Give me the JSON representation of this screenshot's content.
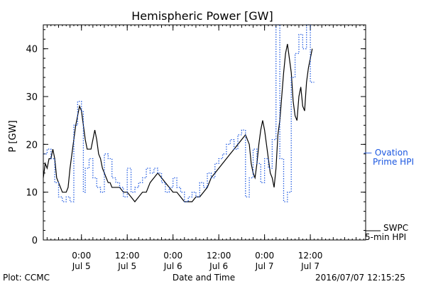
{
  "chart_data": {
    "type": "line",
    "title": "Hemispheric Power [GW]",
    "xlabel": "Date and Time",
    "ylabel": "P [GW]",
    "xlim": [
      -10,
      74.5
    ],
    "ylim": [
      0,
      45
    ],
    "x_units": "hours since 2016-07-05 00:00 UT",
    "y_ticks": [
      "0",
      "10",
      "20",
      "30",
      "40"
    ],
    "x_ticks": [
      {
        "x": 0,
        "time": "0:00",
        "date": "Jul 5"
      },
      {
        "x": 12,
        "time": "12:00",
        "date": "Jul 5"
      },
      {
        "x": 24,
        "time": "0:00",
        "date": "Jul 6"
      },
      {
        "x": 36,
        "time": "12:00",
        "date": "Jul 6"
      },
      {
        "x": 48,
        "time": "0:00",
        "date": "Jul 7"
      },
      {
        "x": 60,
        "time": "12:00",
        "date": "Jul 7"
      }
    ],
    "series": [
      {
        "name": "SWPC 5-min HPI",
        "legend_lines": [
          "SWPC",
          "5-min HPI"
        ],
        "color": "#000000",
        "style": "solid",
        "points": [
          [
            -10,
            13
          ],
          [
            -9.5,
            16
          ],
          [
            -9,
            15
          ],
          [
            -8.5,
            17
          ],
          [
            -8,
            17
          ],
          [
            -7.5,
            19
          ],
          [
            -7,
            17
          ],
          [
            -6.5,
            13
          ],
          [
            -6,
            12
          ],
          [
            -5.5,
            11
          ],
          [
            -5,
            10
          ],
          [
            -4.5,
            10
          ],
          [
            -4,
            10
          ],
          [
            -3.5,
            11
          ],
          [
            -3,
            15
          ],
          [
            -2.5,
            18
          ],
          [
            -2,
            21
          ],
          [
            -1.5,
            24
          ],
          [
            -1,
            26
          ],
          [
            -0.5,
            28
          ],
          [
            0,
            27
          ],
          [
            0.5,
            24
          ],
          [
            1,
            21
          ],
          [
            1.5,
            19
          ],
          [
            2,
            19
          ],
          [
            2.5,
            19
          ],
          [
            3,
            21
          ],
          [
            3.5,
            23
          ],
          [
            4,
            21
          ],
          [
            4.5,
            18
          ],
          [
            5,
            17
          ],
          [
            5.5,
            15
          ],
          [
            6,
            14
          ],
          [
            6.5,
            13
          ],
          [
            7,
            12
          ],
          [
            7.5,
            12
          ],
          [
            8,
            11
          ],
          [
            9,
            11
          ],
          [
            10,
            11
          ],
          [
            11,
            10
          ],
          [
            12,
            10
          ],
          [
            13,
            9
          ],
          [
            14,
            8
          ],
          [
            15,
            9
          ],
          [
            16,
            10
          ],
          [
            17,
            10
          ],
          [
            18,
            12
          ],
          [
            19,
            13
          ],
          [
            20,
            14
          ],
          [
            21,
            13
          ],
          [
            22,
            12
          ],
          [
            23,
            11
          ],
          [
            24,
            10
          ],
          [
            25,
            10
          ],
          [
            26,
            9
          ],
          [
            27,
            8
          ],
          [
            28,
            8
          ],
          [
            29,
            8
          ],
          [
            30,
            9
          ],
          [
            31,
            9
          ],
          [
            32,
            10
          ],
          [
            33,
            11
          ],
          [
            34,
            13
          ],
          [
            35,
            14
          ],
          [
            36,
            15
          ],
          [
            37,
            16
          ],
          [
            38,
            17
          ],
          [
            39,
            18
          ],
          [
            40,
            19
          ],
          [
            41,
            20
          ],
          [
            42,
            21
          ],
          [
            43,
            22
          ],
          [
            44,
            20
          ],
          [
            44.5,
            16
          ],
          [
            45,
            14
          ],
          [
            45.5,
            13
          ],
          [
            46,
            16
          ],
          [
            46.5,
            20
          ],
          [
            47,
            23
          ],
          [
            47.5,
            25
          ],
          [
            48,
            23
          ],
          [
            48.5,
            20
          ],
          [
            49,
            17
          ],
          [
            49.5,
            14
          ],
          [
            50,
            13
          ],
          [
            50.5,
            11
          ],
          [
            51,
            15
          ],
          [
            51.5,
            22
          ],
          [
            52,
            25
          ],
          [
            52.5,
            30
          ],
          [
            53,
            35
          ],
          [
            53.5,
            39
          ],
          [
            54,
            41
          ],
          [
            54.5,
            38
          ],
          [
            55,
            35
          ],
          [
            55.5,
            29
          ],
          [
            56,
            26
          ],
          [
            56.5,
            25
          ],
          [
            57,
            30
          ],
          [
            57.5,
            32
          ],
          [
            58,
            28
          ],
          [
            58.5,
            27
          ],
          [
            59,
            33
          ],
          [
            59.5,
            36
          ],
          [
            60,
            38
          ],
          [
            60.5,
            40
          ]
        ]
      },
      {
        "name": "Ovation Prime HPI",
        "legend_lines": [
          "— Ovation",
          "Prime HPI"
        ],
        "color": "#1a56e0",
        "style": "dotted-step",
        "points": [
          [
            -10,
            18
          ],
          [
            -9,
            19
          ],
          [
            -8,
            17
          ],
          [
            -7,
            12
          ],
          [
            -6,
            9
          ],
          [
            -5,
            8
          ],
          [
            -4,
            9
          ],
          [
            -3,
            8
          ],
          [
            -2,
            24
          ],
          [
            -1,
            29
          ],
          [
            0,
            27
          ],
          [
            0.5,
            10
          ],
          [
            1,
            15
          ],
          [
            2,
            17
          ],
          [
            3,
            13
          ],
          [
            4,
            11
          ],
          [
            5,
            10
          ],
          [
            6,
            18
          ],
          [
            7,
            17
          ],
          [
            8,
            13
          ],
          [
            9,
            12
          ],
          [
            10,
            11
          ],
          [
            11,
            9
          ],
          [
            12,
            15
          ],
          [
            13,
            10
          ],
          [
            14,
            11
          ],
          [
            15,
            12
          ],
          [
            16,
            13
          ],
          [
            17,
            15
          ],
          [
            18,
            14
          ],
          [
            19,
            15
          ],
          [
            20,
            14
          ],
          [
            21,
            12
          ],
          [
            22,
            10
          ],
          [
            23,
            11
          ],
          [
            24,
            13
          ],
          [
            25,
            11
          ],
          [
            26,
            10
          ],
          [
            27,
            8
          ],
          [
            28,
            9
          ],
          [
            29,
            10
          ],
          [
            30,
            9
          ],
          [
            31,
            12
          ],
          [
            32,
            11
          ],
          [
            33,
            14
          ],
          [
            34,
            13
          ],
          [
            35,
            16
          ],
          [
            36,
            17
          ],
          [
            37,
            18
          ],
          [
            38,
            20
          ],
          [
            39,
            21
          ],
          [
            40,
            19
          ],
          [
            41,
            22
          ],
          [
            42,
            23
          ],
          [
            43,
            9
          ],
          [
            44,
            13
          ],
          [
            45,
            19
          ],
          [
            46,
            16
          ],
          [
            47,
            12
          ],
          [
            48,
            17
          ],
          [
            49,
            15
          ],
          [
            50,
            21
          ],
          [
            51,
            45
          ],
          [
            52,
            17
          ],
          [
            53,
            8
          ],
          [
            54,
            10
          ],
          [
            55,
            34
          ],
          [
            56,
            39
          ],
          [
            57,
            43
          ],
          [
            58,
            40
          ],
          [
            59,
            45
          ],
          [
            60,
            33
          ]
        ]
      }
    ],
    "legend_placement": "right",
    "grid": false
  },
  "footer": {
    "plot_credit": "Plot: CCMC",
    "timestamp": "2016/07/07 12:15:25"
  }
}
